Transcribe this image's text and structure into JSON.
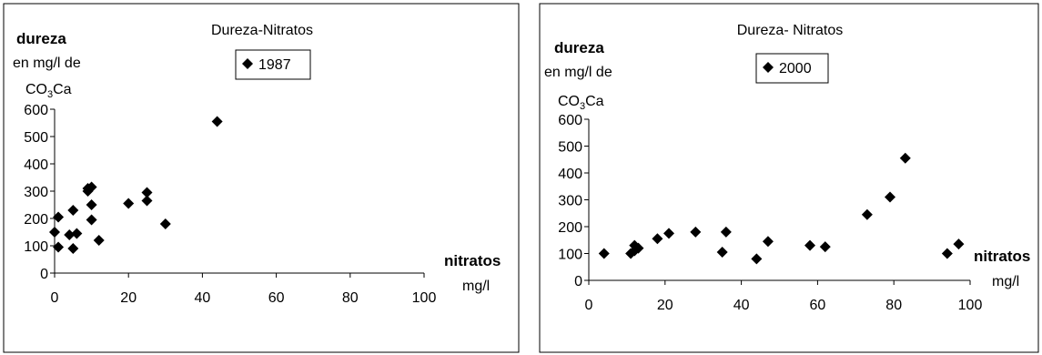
{
  "chart_data": [
    {
      "type": "scatter",
      "title": "Dureza-Nitratos",
      "ylabel_bold": "dureza",
      "ylabel_line2": "en mg/l de",
      "ylabel_formula": {
        "base": "CO",
        "sub": "3",
        "tail": "Ca"
      },
      "xlabel_bold": "nitratos",
      "xunit": "mg/l",
      "legend": "1987",
      "xlim": [
        0,
        100
      ],
      "ylim": [
        0,
        600
      ],
      "xticks": [
        "0",
        "20",
        "40",
        "60",
        "80",
        "100"
      ],
      "yticks": [
        "0",
        "100",
        "200",
        "300",
        "400",
        "500",
        "600"
      ],
      "grid": false,
      "legend_position": "top-center",
      "series": [
        {
          "name": "1987",
          "points": [
            {
              "x": 0,
              "y": 150
            },
            {
              "x": 1,
              "y": 205
            },
            {
              "x": 1,
              "y": 95
            },
            {
              "x": 4,
              "y": 140
            },
            {
              "x": 5,
              "y": 230
            },
            {
              "x": 5,
              "y": 90
            },
            {
              "x": 6,
              "y": 145
            },
            {
              "x": 9,
              "y": 300
            },
            {
              "x": 9,
              "y": 310
            },
            {
              "x": 10,
              "y": 315
            },
            {
              "x": 10,
              "y": 250
            },
            {
              "x": 10,
              "y": 195
            },
            {
              "x": 12,
              "y": 120
            },
            {
              "x": 20,
              "y": 255
            },
            {
              "x": 25,
              "y": 295
            },
            {
              "x": 25,
              "y": 265
            },
            {
              "x": 30,
              "y": 180
            },
            {
              "x": 44,
              "y": 555
            }
          ]
        }
      ]
    },
    {
      "type": "scatter",
      "title": "Dureza- Nitratos",
      "ylabel_bold": "dureza",
      "ylabel_line2": "en mg/l de",
      "ylabel_formula": {
        "base": "CO",
        "sub": "3",
        "tail": "Ca"
      },
      "xlabel_bold": "nitratos",
      "xunit": "mg/l",
      "legend": "2000",
      "xlim": [
        0,
        100
      ],
      "ylim": [
        0,
        600
      ],
      "xticks": [
        "0",
        "20",
        "40",
        "60",
        "80",
        "100"
      ],
      "yticks": [
        "0",
        "100",
        "200",
        "300",
        "400",
        "500",
        "600"
      ],
      "grid": false,
      "legend_position": "top-center",
      "series": [
        {
          "name": "2000",
          "points": [
            {
              "x": 4,
              "y": 100
            },
            {
              "x": 11,
              "y": 100
            },
            {
              "x": 12,
              "y": 110
            },
            {
              "x": 12,
              "y": 130
            },
            {
              "x": 13,
              "y": 120
            },
            {
              "x": 18,
              "y": 155
            },
            {
              "x": 21,
              "y": 175
            },
            {
              "x": 28,
              "y": 180
            },
            {
              "x": 35,
              "y": 105
            },
            {
              "x": 36,
              "y": 180
            },
            {
              "x": 44,
              "y": 80
            },
            {
              "x": 47,
              "y": 145
            },
            {
              "x": 58,
              "y": 130
            },
            {
              "x": 62,
              "y": 125
            },
            {
              "x": 73,
              "y": 245
            },
            {
              "x": 79,
              "y": 310
            },
            {
              "x": 83,
              "y": 455
            },
            {
              "x": 94,
              "y": 100
            },
            {
              "x": 97,
              "y": 135
            }
          ]
        }
      ]
    }
  ]
}
